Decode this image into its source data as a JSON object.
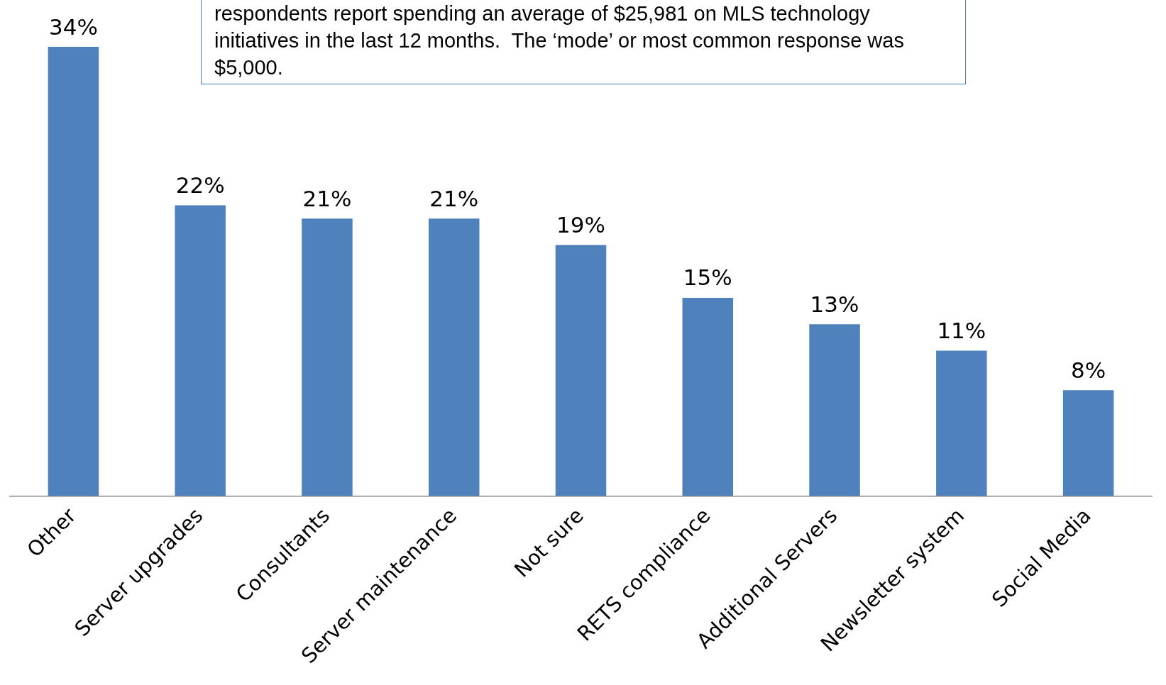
{
  "chart_data": {
    "type": "bar",
    "categories": [
      "Other",
      "Server upgrades",
      "Consultants",
      "Server maintenance",
      "Not sure",
      "RETS compliance",
      "Additional Servers",
      "Newsletter system",
      "Social Media"
    ],
    "values": [
      34,
      22,
      21,
      21,
      19,
      15,
      13,
      11,
      8
    ],
    "value_labels": [
      "34%",
      "22%",
      "21%",
      "21%",
      "19%",
      "15%",
      "13%",
      "11%",
      "8%"
    ],
    "color": "#4f81bd",
    "ylim": [
      0,
      34
    ],
    "grid": false,
    "legend": false,
    "annotations": [
      "respondents report spending an average of $25,981 on MLS technology initiatives in the last 12 months.  The ‘mode’ or most common response was $5,000."
    ]
  }
}
